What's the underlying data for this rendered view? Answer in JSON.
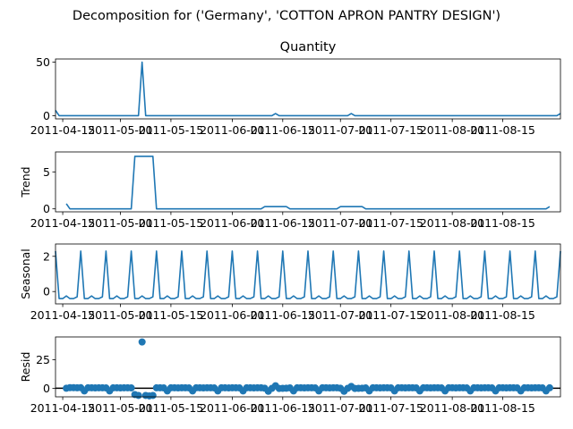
{
  "figure": {
    "suptitle": "Decomposition for ('Germany', 'COTTON APRON PANTRY DESIGN')",
    "line_color": "#1f77b4",
    "zero_line_color": "#000000"
  },
  "chart_data": [
    {
      "type": "line",
      "title": "Quantity",
      "ylabel": "",
      "x_start": "2011-04-13",
      "x_end": "2011-08-31",
      "ylim": [
        -3,
        53
      ],
      "yticks": [
        "0",
        "50"
      ],
      "xticks": [
        {
          "date": "2011-04-15",
          "label": "2011-04-15"
        },
        {
          "date": "2011-05-01",
          "label": "2011-05-01"
        },
        {
          "date": "2011-05-15",
          "label": "2011-05-15"
        },
        {
          "date": "2011-06-01",
          "label": "2011-06-01"
        },
        {
          "date": "2011-06-15",
          "label": "2011-06-15"
        },
        {
          "date": "2011-07-01",
          "label": "2011-07-01"
        },
        {
          "date": "2011-07-15",
          "label": "2011-07-15"
        },
        {
          "date": "2011-08-01",
          "label": "2011-08-01"
        },
        {
          "date": "2011-08-15",
          "label": "2011-08-15"
        }
      ],
      "series": [
        {
          "points": [
            [
              "2011-04-13",
              5
            ],
            [
              "2011-04-14",
              0
            ],
            [
              "2011-05-06",
              0
            ],
            [
              "2011-05-07",
              50
            ],
            [
              "2011-05-08",
              0
            ],
            [
              "2011-06-12",
              0
            ],
            [
              "2011-06-13",
              2
            ],
            [
              "2011-06-14",
              0
            ],
            [
              "2011-07-03",
              0
            ],
            [
              "2011-07-04",
              2
            ],
            [
              "2011-07-05",
              0
            ],
            [
              "2011-08-30",
              0
            ],
            [
              "2011-08-31",
              2
            ]
          ]
        }
      ]
    },
    {
      "type": "line",
      "title": "",
      "ylabel": "Trend",
      "x_start": "2011-04-13",
      "x_end": "2011-08-31",
      "ylim": [
        -0.4,
        7.7
      ],
      "yticks": [
        "0",
        "5"
      ],
      "xticks": [
        {
          "date": "2011-04-15",
          "label": "2011-04-15"
        },
        {
          "date": "2011-05-01",
          "label": "2011-05-01"
        },
        {
          "date": "2011-05-15",
          "label": "2011-05-15"
        },
        {
          "date": "2011-06-01",
          "label": "2011-06-01"
        },
        {
          "date": "2011-06-15",
          "label": "2011-06-15"
        },
        {
          "date": "2011-07-01",
          "label": "2011-07-01"
        },
        {
          "date": "2011-07-15",
          "label": "2011-07-15"
        },
        {
          "date": "2011-08-01",
          "label": "2011-08-01"
        },
        {
          "date": "2011-08-15",
          "label": "2011-08-15"
        }
      ],
      "series": [
        {
          "points": [
            [
              "2011-04-16",
              0.7
            ],
            [
              "2011-04-17",
              0
            ],
            [
              "2011-05-04",
              0
            ],
            [
              "2011-05-05",
              7.1
            ],
            [
              "2011-05-10",
              7.1
            ],
            [
              "2011-05-11",
              0
            ],
            [
              "2011-06-09",
              0
            ],
            [
              "2011-06-10",
              0.3
            ],
            [
              "2011-06-16",
              0.3
            ],
            [
              "2011-06-17",
              0
            ],
            [
              "2011-06-30",
              0
            ],
            [
              "2011-07-01",
              0.3
            ],
            [
              "2011-07-07",
              0.3
            ],
            [
              "2011-07-08",
              0
            ],
            [
              "2011-08-27",
              0
            ],
            [
              "2011-08-28",
              0.3
            ]
          ]
        }
      ]
    },
    {
      "type": "line",
      "title": "",
      "ylabel": "Seasonal",
      "x_start": "2011-04-13",
      "x_end": "2011-08-31",
      "ylim": [
        -0.7,
        2.7
      ],
      "yticks": [
        "0",
        "2"
      ],
      "xticks": [
        {
          "date": "2011-04-15",
          "label": "2011-04-15"
        },
        {
          "date": "2011-05-01",
          "label": "2011-05-01"
        },
        {
          "date": "2011-05-15",
          "label": "2011-05-15"
        },
        {
          "date": "2011-06-01",
          "label": "2011-06-01"
        },
        {
          "date": "2011-06-15",
          "label": "2011-06-15"
        },
        {
          "date": "2011-07-01",
          "label": "2011-07-01"
        },
        {
          "date": "2011-07-15",
          "label": "2011-07-15"
        },
        {
          "date": "2011-08-01",
          "label": "2011-08-01"
        },
        {
          "date": "2011-08-15",
          "label": "2011-08-15"
        }
      ],
      "seasonal_period_days": 7,
      "seasonal_first_day": "2011-04-13",
      "seasonal_pattern": [
        2.3,
        -0.4,
        -0.4,
        -0.25,
        -0.4,
        -0.4,
        -0.3
      ],
      "series": [
        {
          "points": []
        }
      ]
    },
    {
      "type": "scatter",
      "title": "",
      "ylabel": "Resid",
      "x_start": "2011-04-13",
      "x_end": "2011-08-31",
      "ylim": [
        -7.5,
        45
      ],
      "yticks": [
        "0",
        "25"
      ],
      "zero_line": true,
      "xticks": [
        {
          "date": "2011-04-15",
          "label": "2011-04-15"
        },
        {
          "date": "2011-05-01",
          "label": "2011-05-01"
        },
        {
          "date": "2011-05-15",
          "label": "2011-05-15"
        },
        {
          "date": "2011-06-01",
          "label": "2011-06-01"
        },
        {
          "date": "2011-06-15",
          "label": "2011-06-15"
        },
        {
          "date": "2011-07-01",
          "label": "2011-07-01"
        },
        {
          "date": "2011-07-15",
          "label": "2011-07-15"
        },
        {
          "date": "2011-08-01",
          "label": "2011-08-01"
        },
        {
          "date": "2011-08-15",
          "label": "2011-08-15"
        }
      ],
      "series": [
        {
          "points": [
            [
              "2011-04-16",
              0
            ],
            [
              "2011-04-17",
              0.5
            ],
            [
              "2011-04-18",
              0.5
            ],
            [
              "2011-04-19",
              0.4
            ],
            [
              "2011-04-20",
              0.5
            ],
            [
              "2011-04-21",
              -2.3
            ],
            [
              "2011-04-22",
              0.4
            ],
            [
              "2011-04-23",
              0.4
            ],
            [
              "2011-04-24",
              0.3
            ],
            [
              "2011-04-25",
              0.4
            ],
            [
              "2011-04-26",
              0.4
            ],
            [
              "2011-04-27",
              0.3
            ],
            [
              "2011-04-28",
              -2.3
            ],
            [
              "2011-04-29",
              0.4
            ],
            [
              "2011-04-30",
              0.4
            ],
            [
              "2011-05-01",
              0.3
            ],
            [
              "2011-05-02",
              0.4
            ],
            [
              "2011-05-03",
              0.4
            ],
            [
              "2011-05-04",
              0.3
            ],
            [
              "2011-05-05",
              -5.5
            ],
            [
              "2011-05-06",
              -6.3
            ],
            [
              "2011-05-07",
              40.6
            ],
            [
              "2011-05-08",
              -6.3
            ],
            [
              "2011-05-09",
              -6.7
            ],
            [
              "2011-05-10",
              -6.3
            ],
            [
              "2011-05-11",
              0.4
            ],
            [
              "2011-05-12",
              0.4
            ],
            [
              "2011-05-13",
              0.3
            ],
            [
              "2011-05-14",
              -2.3
            ],
            [
              "2011-05-15",
              0.4
            ],
            [
              "2011-05-16",
              0.4
            ],
            [
              "2011-05-17",
              0.3
            ],
            [
              "2011-05-18",
              0.4
            ],
            [
              "2011-05-19",
              0.4
            ],
            [
              "2011-05-20",
              0.3
            ],
            [
              "2011-05-21",
              -2.3
            ],
            [
              "2011-05-22",
              0.4
            ],
            [
              "2011-05-23",
              0.4
            ],
            [
              "2011-05-24",
              0.3
            ],
            [
              "2011-05-25",
              0.4
            ],
            [
              "2011-05-26",
              0.4
            ],
            [
              "2011-05-27",
              0.3
            ],
            [
              "2011-05-28",
              -2.3
            ],
            [
              "2011-05-29",
              0.4
            ],
            [
              "2011-05-30",
              0.4
            ],
            [
              "2011-05-31",
              0.3
            ],
            [
              "2011-06-01",
              0.4
            ],
            [
              "2011-06-02",
              0.4
            ],
            [
              "2011-06-03",
              0.3
            ],
            [
              "2011-06-04",
              -2.3
            ],
            [
              "2011-06-05",
              0.4
            ],
            [
              "2011-06-06",
              0.4
            ],
            [
              "2011-06-07",
              0.3
            ],
            [
              "2011-06-08",
              0.4
            ],
            [
              "2011-06-09",
              0.4
            ],
            [
              "2011-06-10",
              0
            ],
            [
              "2011-06-11",
              -2.6
            ],
            [
              "2011-06-12",
              -0.1
            ],
            [
              "2011-06-13",
              2.2
            ],
            [
              "2011-06-14",
              -0.2
            ],
            [
              "2011-06-15",
              -0.1
            ],
            [
              "2011-06-16",
              0
            ],
            [
              "2011-06-17",
              0.3
            ],
            [
              "2011-06-18",
              -2.3
            ],
            [
              "2011-06-19",
              0.4
            ],
            [
              "2011-06-20",
              0.4
            ],
            [
              "2011-06-21",
              0.3
            ],
            [
              "2011-06-22",
              0.4
            ],
            [
              "2011-06-23",
              0.4
            ],
            [
              "2011-06-24",
              0.3
            ],
            [
              "2011-06-25",
              -2.3
            ],
            [
              "2011-06-26",
              0.4
            ],
            [
              "2011-06-27",
              0.4
            ],
            [
              "2011-06-28",
              0.3
            ],
            [
              "2011-06-29",
              0.4
            ],
            [
              "2011-06-30",
              0.4
            ],
            [
              "2011-07-01",
              0
            ],
            [
              "2011-07-02",
              -2.6
            ],
            [
              "2011-07-03",
              -0.1
            ],
            [
              "2011-07-04",
              1.6
            ],
            [
              "2011-07-05",
              -0.2
            ],
            [
              "2011-07-06",
              -0.1
            ],
            [
              "2011-07-07",
              0
            ],
            [
              "2011-07-08",
              0.3
            ],
            [
              "2011-07-09",
              -2.3
            ],
            [
              "2011-07-10",
              0.4
            ],
            [
              "2011-07-11",
              0.4
            ],
            [
              "2011-07-12",
              0.3
            ],
            [
              "2011-07-13",
              0.4
            ],
            [
              "2011-07-14",
              0.4
            ],
            [
              "2011-07-15",
              0.3
            ],
            [
              "2011-07-16",
              -2.3
            ],
            [
              "2011-07-17",
              0.4
            ],
            [
              "2011-07-18",
              0.4
            ],
            [
              "2011-07-19",
              0.3
            ],
            [
              "2011-07-20",
              0.4
            ],
            [
              "2011-07-21",
              0.4
            ],
            [
              "2011-07-22",
              0.3
            ],
            [
              "2011-07-23",
              -2.3
            ],
            [
              "2011-07-24",
              0.4
            ],
            [
              "2011-07-25",
              0.4
            ],
            [
              "2011-07-26",
              0.3
            ],
            [
              "2011-07-27",
              0.4
            ],
            [
              "2011-07-28",
              0.4
            ],
            [
              "2011-07-29",
              0.3
            ],
            [
              "2011-07-30",
              -2.3
            ],
            [
              "2011-07-31",
              0.4
            ],
            [
              "2011-08-01",
              0.4
            ],
            [
              "2011-08-02",
              0.3
            ],
            [
              "2011-08-03",
              0.4
            ],
            [
              "2011-08-04",
              0.4
            ],
            [
              "2011-08-05",
              0.3
            ],
            [
              "2011-08-06",
              -2.3
            ],
            [
              "2011-08-07",
              0.4
            ],
            [
              "2011-08-08",
              0.4
            ],
            [
              "2011-08-09",
              0.3
            ],
            [
              "2011-08-10",
              0.4
            ],
            [
              "2011-08-11",
              0.4
            ],
            [
              "2011-08-12",
              0.3
            ],
            [
              "2011-08-13",
              -2.3
            ],
            [
              "2011-08-14",
              0.4
            ],
            [
              "2011-08-15",
              0.4
            ],
            [
              "2011-08-16",
              0.3
            ],
            [
              "2011-08-17",
              0.4
            ],
            [
              "2011-08-18",
              0.4
            ],
            [
              "2011-08-19",
              0.3
            ],
            [
              "2011-08-20",
              -2.3
            ],
            [
              "2011-08-21",
              0.4
            ],
            [
              "2011-08-22",
              0.4
            ],
            [
              "2011-08-23",
              0.3
            ],
            [
              "2011-08-24",
              0.4
            ],
            [
              "2011-08-25",
              0.4
            ],
            [
              "2011-08-26",
              0.3
            ],
            [
              "2011-08-27",
              -2.3
            ],
            [
              "2011-08-28",
              0.4
            ]
          ]
        }
      ]
    }
  ]
}
